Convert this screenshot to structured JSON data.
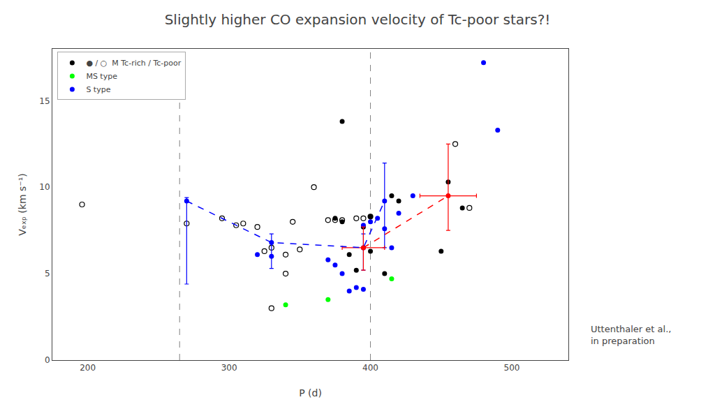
{
  "chart_data": {
    "type": "scatter",
    "title": "Slightly higher CO expansion velocity of Tc-poor stars?!",
    "x_label": "P (d)",
    "y_label": "Vₑₓₚ (km s⁻¹)",
    "xlim": [
      175,
      540
    ],
    "ylim": [
      0,
      18
    ],
    "xticks": [
      200,
      300,
      400,
      500
    ],
    "yticks": [
      0,
      5,
      10,
      15
    ],
    "grid": false,
    "legend": "upper left",
    "annotation": "Uttenthaler et al.,\nin preparation",
    "vlines": {
      "x": [
        265,
        400
      ],
      "color": "gray",
      "line_style": "dashed"
    },
    "series": [
      {
        "color": "black",
        "marker": "circle-open",
        "x": [
          196,
          270,
          295,
          305,
          310,
          320,
          325,
          330,
          340,
          345,
          350,
          360,
          370,
          375,
          380,
          390,
          395,
          400,
          330,
          340,
          460,
          470
        ],
        "values": [
          9.0,
          7.9,
          8.2,
          7.8,
          7.9,
          7.7,
          6.3,
          6.5,
          6.1,
          8.0,
          6.4,
          10.0,
          8.1,
          8.1,
          8.1,
          8.2,
          8.2,
          8.3,
          3.0,
          5.0,
          12.5,
          8.8
        ]
      },
      {
        "name": "● / ○  M Tc-rich / Tc-poor",
        "color": "black",
        "marker": "circle",
        "x": [
          375,
          380,
          395,
          400,
          415,
          420,
          455,
          465,
          390,
          385,
          400,
          410,
          380,
          450
        ],
        "values": [
          8.2,
          8.0,
          7.7,
          8.3,
          9.5,
          9.2,
          10.3,
          8.8,
          5.2,
          6.1,
          6.3,
          5.0,
          13.8,
          6.3
        ]
      },
      {
        "name": "MS type",
        "color": "lime",
        "marker": "circle",
        "x": [
          340,
          370,
          415
        ],
        "values": [
          3.2,
          3.5,
          4.7
        ]
      },
      {
        "name": "S type",
        "color": "blue",
        "marker": "circle",
        "x": [
          320,
          330,
          370,
          375,
          380,
          385,
          390,
          395,
          395,
          400,
          405,
          410,
          415,
          420,
          430,
          480,
          490
        ],
        "values": [
          6.1,
          6.0,
          5.8,
          5.5,
          5.0,
          4.0,
          4.2,
          4.1,
          7.8,
          8.0,
          8.2,
          7.6,
          6.5,
          8.5,
          9.5,
          17.2,
          13.3
        ]
      },
      {
        "color": "blue",
        "marker": "circle",
        "x": [
          270,
          330,
          395,
          410
        ],
        "values": [
          9.2,
          6.8,
          6.5,
          9.2
        ],
        "error_y_minus": [
          4.8,
          1.5,
          1.3,
          2.7
        ],
        "error_y_plus": [
          0.2,
          0.5,
          0.8,
          2.2
        ]
      },
      {
        "color": "red",
        "marker": "circle",
        "x": [
          395,
          455
        ],
        "values": [
          6.5,
          9.5
        ],
        "error_y_minus": [
          1.3,
          2.0
        ],
        "error_y_plus": [
          1.2,
          3.0
        ],
        "error_x": [
          15,
          20
        ]
      },
      {
        "type": "line",
        "line_style": "dashed",
        "color": "blue",
        "x": [
          270,
          330,
          395,
          410
        ],
        "values": [
          9.2,
          6.8,
          6.5,
          9.2
        ]
      },
      {
        "type": "line",
        "line_style": "dashed",
        "color": "red",
        "x": [
          395,
          455
        ],
        "values": [
          6.5,
          9.5
        ]
      }
    ]
  }
}
